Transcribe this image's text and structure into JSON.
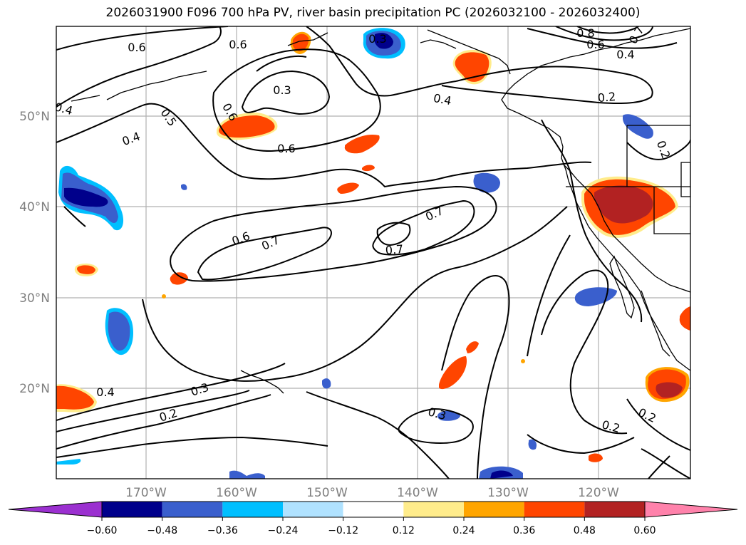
{
  "title": "2026031900 F096 700 hPa PV, river basin precipitation PC (2026032100 - 2026032400)",
  "axes": {
    "lat_labels": [
      "50°N",
      "40°N",
      "30°N",
      "20°N"
    ],
    "lon_labels": [
      "170°W",
      "160°W",
      "150°W",
      "140°W",
      "130°W",
      "120°W"
    ]
  },
  "colorbar": {
    "ticks": [
      "−0.60",
      "−0.48",
      "−0.36",
      "−0.24",
      "−0.12",
      "0.12",
      "0.24",
      "0.36",
      "0.48",
      "0.60"
    ],
    "colors": [
      "#9b30d0",
      "#00008b",
      "#3a5fcd",
      "#00bfff",
      "#b0e2ff",
      "#ffffff",
      "#ffec8b",
      "#ffa500",
      "#ff4500",
      "#b22222",
      "#ff82ab"
    ]
  },
  "contour_labels": [
    "0.6",
    "0.6",
    "0.3",
    "0.8",
    "0.6",
    "0.4",
    "0.7",
    "0.4",
    "0.3",
    "0.4",
    "0.2",
    "0.5",
    "0.6",
    "0.4",
    "0.6",
    "0.2",
    "0.7",
    "0.6",
    "0.7",
    "0.7",
    "0.4",
    "0.3",
    "0.2",
    "0.3",
    "0.2",
    "0.2"
  ]
}
